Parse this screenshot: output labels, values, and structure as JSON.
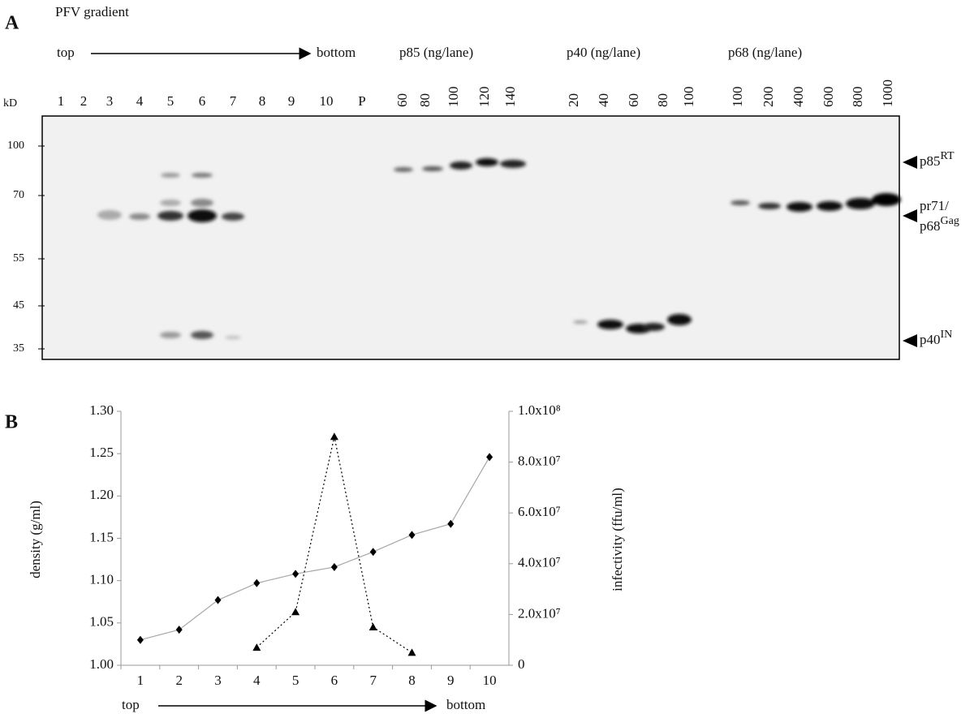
{
  "panel_a": {
    "label": "A",
    "gradient_label": "PFV gradient",
    "top": "top",
    "bottom": "bottom",
    "kd": "kD",
    "lanes": [
      "1",
      "2",
      "3",
      "4",
      "5",
      "6",
      "7",
      "8",
      "9",
      "10",
      "P"
    ],
    "groups": [
      {
        "title": "p85 (ng/lane)",
        "lanes": [
          "60",
          "80",
          "100",
          "120",
          "140"
        ]
      },
      {
        "title": "p40 (ng/lane)",
        "lanes": [
          "20",
          "40",
          "60",
          "80",
          "100"
        ]
      },
      {
        "title": "p68 (ng/lane)",
        "lanes": [
          "100",
          "200",
          "400",
          "600",
          "800",
          "1000"
        ]
      }
    ],
    "mw_markers": [
      "100",
      "70",
      "55",
      "45",
      "35"
    ],
    "band_labels": [
      {
        "text": "p85",
        "sup": "RT"
      },
      {
        "pre": "pr71/",
        "text": "p68",
        "sup": "Gag"
      },
      {
        "text": "p40",
        "sup": "IN"
      }
    ]
  },
  "chart_data": {
    "type": "line",
    "panel_label": "B",
    "y_label": "density (g/ml)",
    "y2_label": "infectivity (ffu/ml)",
    "x_start_label": "top",
    "x_end_label": "bottom",
    "categories": [
      "1",
      "2",
      "3",
      "4",
      "5",
      "6",
      "7",
      "8",
      "9",
      "10"
    ],
    "ylim": [
      1.0,
      1.3
    ],
    "yticks": [
      {
        "value": 1.0,
        "label": "1.00"
      },
      1.05,
      {
        "value": 1.1,
        "label": "1.10"
      },
      1.15,
      {
        "value": 1.2,
        "label": "1.20"
      },
      1.25,
      {
        "value": 1.3,
        "label": "1.30"
      }
    ],
    "y2lim": [
      0,
      100000000
    ],
    "y2ticks": [
      0,
      {
        "value": 20000000,
        "label": "2.0x10⁷"
      },
      {
        "value": 40000000,
        "label": "4.0x10⁷"
      },
      {
        "value": 60000000,
        "label": "6.0x10⁷"
      },
      {
        "value": 80000000,
        "label": "8.0x10⁷"
      },
      {
        "value": 100000000,
        "label": "1.0x10⁸"
      }
    ],
    "series": [
      {
        "color": "#000000",
        "marker": "diamond",
        "line_style": "solid",
        "values": [
          1.03,
          1.042,
          1.077,
          1.097,
          1.108,
          1.116,
          1.134,
          1.154,
          1.167,
          1.246
        ]
      },
      {
        "color": "#000000",
        "marker": "triangle",
        "line_style": "dotted",
        "axis": "y2",
        "values": [
          null,
          null,
          null,
          7000000,
          21000000,
          90000000,
          15000000,
          5000000,
          null,
          null
        ]
      }
    ]
  }
}
